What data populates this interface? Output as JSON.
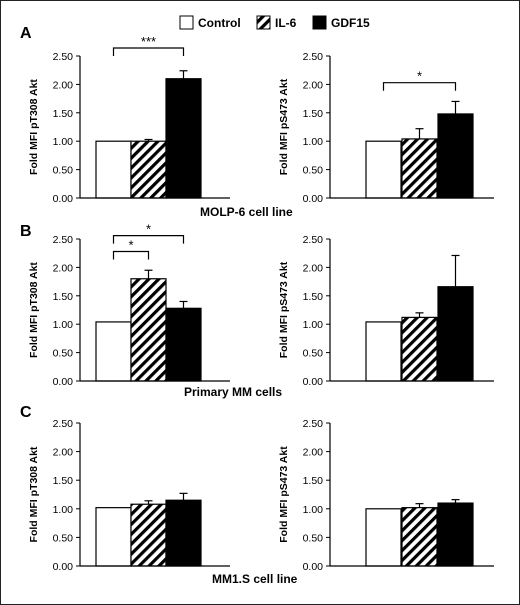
{
  "legend": {
    "items": [
      {
        "label": "Control",
        "fill": "white"
      },
      {
        "label": "IL-6",
        "fill": "hatch"
      },
      {
        "label": "GDF15",
        "fill": "black"
      }
    ]
  },
  "colors": {
    "axis": "#000000",
    "bar_solid": "#000000",
    "bar_open": "#ffffff"
  },
  "chart_data": [
    {
      "type": "bar",
      "panel": "A",
      "ylabel": "Fold MFI pT308 Akt",
      "ylim": [
        0,
        2.5
      ],
      "yticks": [
        "0.00",
        "0.50",
        "1.00",
        "1.50",
        "2.00",
        "2.50"
      ],
      "categories": [
        "Control",
        "IL-6",
        "GDF15"
      ],
      "values": [
        1.0,
        1.0,
        2.1
      ],
      "errors": [
        0,
        0.03,
        0.14
      ],
      "brackets": [
        {
          "from": 0,
          "to": 2,
          "label": "***"
        }
      ]
    },
    {
      "type": "bar",
      "panel": "A",
      "ylabel": "Fold MFI pS473 Akt",
      "ylim": [
        0,
        2.5
      ],
      "yticks": [
        "0.00",
        "0.50",
        "1.00",
        "1.50",
        "2.00",
        "2.50"
      ],
      "categories": [
        "Control",
        "IL-6",
        "GDF15"
      ],
      "values": [
        1.0,
        1.04,
        1.48
      ],
      "errors": [
        0,
        0.18,
        0.22
      ],
      "brackets": [
        {
          "from": 0,
          "to": 2,
          "label": "*"
        }
      ]
    },
    {
      "type": "bar",
      "panel": "B",
      "ylabel": "Fold MFI pT308 Akt",
      "ylim": [
        0,
        2.5
      ],
      "yticks": [
        "0.00",
        "0.50",
        "1.00",
        "1.50",
        "2.00",
        "2.50"
      ],
      "categories": [
        "Control",
        "IL-6",
        "GDF15"
      ],
      "values": [
        1.04,
        1.8,
        1.28
      ],
      "errors": [
        0,
        0.15,
        0.12
      ],
      "brackets": [
        {
          "from": 0,
          "to": 1,
          "label": "*"
        },
        {
          "from": 0,
          "to": 2,
          "label": "*"
        }
      ]
    },
    {
      "type": "bar",
      "panel": "B",
      "ylabel": "Fold MFI pS473 Akt",
      "ylim": [
        0,
        2.5
      ],
      "yticks": [
        "0.00",
        "0.50",
        "1.00",
        "1.50",
        "2.00",
        "2.50"
      ],
      "categories": [
        "Control",
        "IL-6",
        "GDF15"
      ],
      "values": [
        1.04,
        1.12,
        1.66
      ],
      "errors": [
        0,
        0.08,
        0.55
      ],
      "brackets": []
    },
    {
      "type": "bar",
      "panel": "C",
      "ylabel": "Fold MFI pT308 Akt",
      "ylim": [
        0,
        2.5
      ],
      "yticks": [
        "0.00",
        "0.50",
        "1.00",
        "1.50",
        "2.00",
        "2.50"
      ],
      "categories": [
        "Control",
        "IL-6",
        "GDF15"
      ],
      "values": [
        1.02,
        1.08,
        1.15
      ],
      "errors": [
        0,
        0.06,
        0.12
      ],
      "brackets": []
    },
    {
      "type": "bar",
      "panel": "C",
      "ylabel": "Fold MFI pS473 Akt",
      "ylim": [
        0,
        2.5
      ],
      "yticks": [
        "0.00",
        "0.50",
        "1.00",
        "1.50",
        "2.00",
        "2.50"
      ],
      "categories": [
        "Control",
        "IL-6",
        "GDF15"
      ],
      "values": [
        1.0,
        1.02,
        1.1
      ],
      "errors": [
        0,
        0.07,
        0.06
      ],
      "brackets": []
    }
  ],
  "panel_letters": [
    "A",
    "B",
    "C"
  ],
  "captions": [
    "MOLP-6 cell line",
    "Primary MM cells",
    "MM1.S  cell line"
  ]
}
